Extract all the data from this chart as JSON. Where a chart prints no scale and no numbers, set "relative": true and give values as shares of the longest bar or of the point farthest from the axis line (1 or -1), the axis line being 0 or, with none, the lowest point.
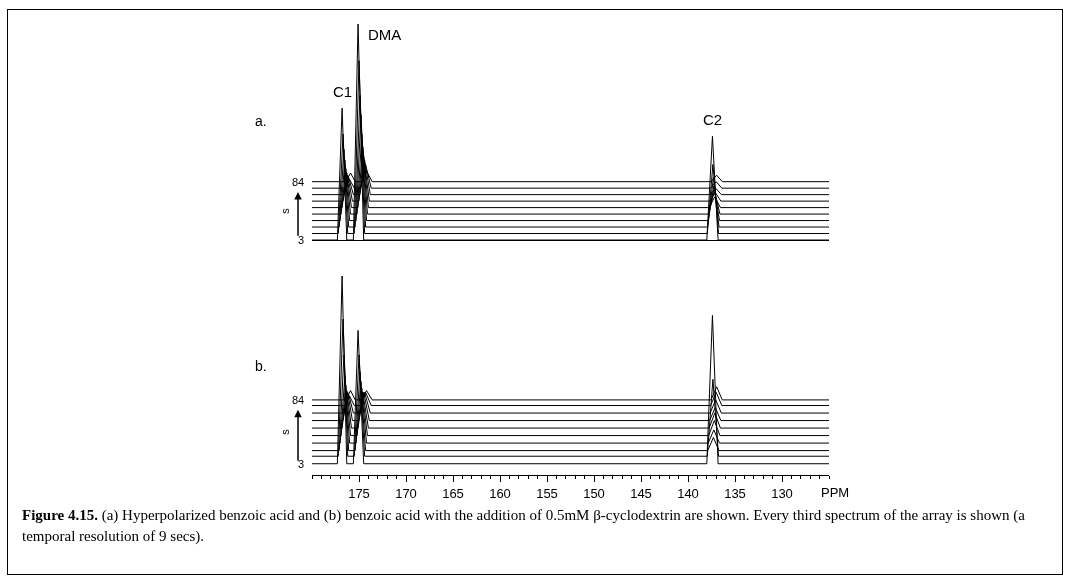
{
  "chart_data": [
    {
      "type": "line",
      "title": "a.",
      "ylabel": "s",
      "relative": true,
      "xlim": [
        180,
        125
      ],
      "xticks": [
        175,
        170,
        165,
        160,
        155,
        150,
        145,
        140,
        135,
        130
      ],
      "tick_labels": false,
      "annotations": [
        {
          "text": "C1",
          "x": 176.8,
          "y": 0.61
        },
        {
          "text": "DMA",
          "x": 175.1,
          "y": 1
        },
        {
          "text": "C2",
          "x": 137.4,
          "y": 0.48
        },
        "3",
        "84"
      ],
      "series": [
        {
          "color": "#000000",
          "x": [
            180,
            177.3,
            176.8,
            176.3,
            175.6,
            175.1,
            174.5,
            138,
            137.4,
            136.8,
            125
          ],
          "values": [
            0,
            0,
            0.61,
            0,
            0,
            1,
            0,
            0,
            0.48,
            0,
            0
          ]
        },
        {
          "color": "#000000",
          "x": [
            180,
            177.2,
            176.7,
            176.2,
            175.5,
            175,
            174.4,
            137.95,
            137.35,
            136.75,
            125
          ],
          "values": [
            0.03,
            0.03,
            0.49,
            0.03,
            0.03,
            0.83,
            0.03,
            0.03,
            0.35,
            0.03,
            0.03
          ]
        },
        {
          "color": "#000000",
          "x": [
            180,
            177.1,
            176.6,
            176.1,
            175.4,
            174.9,
            174.3,
            137.9,
            137.3,
            136.7,
            125
          ],
          "values": [
            0.06,
            0.06,
            0.42,
            0.06,
            0.06,
            0.67,
            0.06,
            0.06,
            0.29,
            0.06,
            0.06
          ]
        },
        {
          "color": "#000000",
          "x": [
            180,
            177,
            176.5,
            176,
            175.3,
            174.8,
            174.2,
            137.85,
            137.25,
            136.65,
            125
          ],
          "values": [
            0.09,
            0.09,
            0.37,
            0.09,
            0.09,
            0.58,
            0.09,
            0.09,
            0.25,
            0.09,
            0.09
          ]
        },
        {
          "color": "#000000",
          "x": [
            180,
            176.9,
            176.4,
            175.9,
            175.2,
            174.7,
            174.1,
            137.8,
            137.2,
            136.6,
            125
          ],
          "values": [
            0.12,
            0.12,
            0.33,
            0.12,
            0.12,
            0.49,
            0.12,
            0.12,
            0.23,
            0.12,
            0.12
          ]
        },
        {
          "color": "#000000",
          "x": [
            180,
            176.8,
            176.3,
            175.8,
            175.1,
            174.6,
            174,
            137.75,
            137.15,
            136.55,
            125
          ],
          "values": [
            0.15,
            0.15,
            0.31,
            0.15,
            0.15,
            0.43,
            0.15,
            0.15,
            0.2,
            0.15,
            0.15
          ]
        },
        {
          "color": "#000000",
          "x": [
            180,
            176.7,
            176.2,
            175.7,
            175,
            174.5,
            173.9,
            137.7,
            137.1,
            136.5,
            125
          ],
          "values": [
            0.18,
            0.18,
            0.3,
            0.18,
            0.18,
            0.39,
            0.18,
            0.18,
            0.22,
            0.18,
            0.18
          ]
        },
        {
          "color": "#000000",
          "x": [
            180,
            176.6,
            176.1,
            175.6,
            174.9,
            174.4,
            173.8,
            137.65,
            137.05,
            136.45,
            125
          ],
          "values": [
            0.21,
            0.21,
            0.29,
            0.21,
            0.21,
            0.37,
            0.21,
            0.21,
            0.24,
            0.21,
            0.21
          ]
        },
        {
          "color": "#000000",
          "x": [
            180,
            176.5,
            176,
            175.5,
            174.8,
            174.3,
            173.7,
            137.6,
            137,
            136.4,
            125
          ],
          "values": [
            0.24,
            0.24,
            0.28,
            0.24,
            0.24,
            0.35,
            0.24,
            0.24,
            0.27,
            0.24,
            0.24
          ]
        },
        {
          "color": "#000000",
          "x": [
            180,
            176.4,
            175.9,
            175.4,
            174.7,
            174.2,
            173.6,
            137.55,
            136.95,
            136.35,
            125
          ],
          "values": [
            0.27,
            0.27,
            0.31,
            0.27,
            0.27,
            0.32,
            0.27,
            0.27,
            0.3,
            0.27,
            0.27
          ]
        }
      ]
    },
    {
      "type": "line",
      "title": "b.",
      "ylabel": "s",
      "xlabel": "PPM",
      "relative": true,
      "xlim": [
        180,
        125
      ],
      "xticks": [
        175,
        170,
        165,
        160,
        155,
        150,
        145,
        140,
        135,
        130
      ],
      "tick_labels": "x",
      "annotations": [
        "3",
        "84",
        "Figure 4.15. (a) Hyperpolarized benzoic acid and (b) benzoic acid with the addition of 0.5mM β-cyclodextrin are shown.  Every third spectrum of the array is shown (a temporal resolution of 9 secs)."
      ],
      "series": [
        {
          "color": "#000000",
          "x": [
            180,
            177.3,
            176.8,
            176.3,
            175.6,
            175.1,
            174.5,
            138,
            137.4,
            136.8,
            125
          ],
          "values": [
            0,
            0,
            1,
            0,
            0,
            0.71,
            0,
            0,
            0.79,
            0,
            0
          ]
        },
        {
          "color": "#000000",
          "x": [
            180,
            177.2,
            176.7,
            176.2,
            175.5,
            175,
            174.4,
            137.95,
            137.35,
            136.75,
            125
          ],
          "values": [
            0.04,
            0.04,
            0.77,
            0.04,
            0.04,
            0.58,
            0.04,
            0.04,
            0.45,
            0.04,
            0.04
          ]
        },
        {
          "color": "#000000",
          "x": [
            180,
            177.1,
            176.6,
            176.1,
            175.4,
            174.9,
            174.3,
            137.9,
            137.3,
            136.7,
            125
          ],
          "values": [
            0.07,
            0.07,
            0.58,
            0.07,
            0.07,
            0.49,
            0.07,
            0.07,
            0.14,
            0.07,
            0.07
          ]
        },
        {
          "color": "#000000",
          "x": [
            180,
            177,
            176.5,
            176,
            175.3,
            174.8,
            174.2,
            137.85,
            137.25,
            136.65,
            125
          ],
          "values": [
            0.11,
            0.11,
            0.47,
            0.11,
            0.11,
            0.44,
            0.11,
            0.11,
            0.18,
            0.11,
            0.11
          ]
        },
        {
          "color": "#000000",
          "x": [
            180,
            176.9,
            176.4,
            175.9,
            175.2,
            174.7,
            174.1,
            137.8,
            137.2,
            136.6,
            125
          ],
          "values": [
            0.15,
            0.15,
            0.42,
            0.15,
            0.15,
            0.4,
            0.15,
            0.15,
            0.23,
            0.15,
            0.15
          ]
        },
        {
          "color": "#000000",
          "x": [
            180,
            176.8,
            176.3,
            175.8,
            175.1,
            174.6,
            174,
            137.75,
            137.15,
            136.55,
            125
          ],
          "values": [
            0.19,
            0.19,
            0.39,
            0.19,
            0.19,
            0.38,
            0.19,
            0.19,
            0.27,
            0.19,
            0.19
          ]
        },
        {
          "color": "#000000",
          "x": [
            180,
            176.7,
            176.2,
            175.7,
            175,
            174.5,
            173.9,
            137.7,
            137.1,
            136.5,
            125
          ],
          "values": [
            0.23,
            0.23,
            0.38,
            0.23,
            0.23,
            0.38,
            0.23,
            0.23,
            0.3,
            0.23,
            0.23
          ]
        },
        {
          "color": "#000000",
          "x": [
            180,
            176.6,
            176.1,
            175.6,
            174.9,
            174.4,
            173.8,
            137.65,
            137.05,
            136.45,
            125
          ],
          "values": [
            0.27,
            0.27,
            0.37,
            0.27,
            0.27,
            0.38,
            0.27,
            0.27,
            0.34,
            0.27,
            0.27
          ]
        },
        {
          "color": "#000000",
          "x": [
            180,
            176.5,
            176,
            175.5,
            174.8,
            174.3,
            173.7,
            137.6,
            137,
            136.4,
            125
          ],
          "values": [
            0.31,
            0.31,
            0.36,
            0.31,
            0.31,
            0.38,
            0.31,
            0.31,
            0.38,
            0.31,
            0.31
          ]
        },
        {
          "color": "#000000",
          "x": [
            180,
            176.4,
            175.9,
            175.4,
            174.7,
            174.2,
            173.6,
            137.55,
            136.95,
            136.35,
            125
          ],
          "values": [
            0.34,
            0.34,
            0.39,
            0.34,
            0.34,
            0.39,
            0.34,
            0.34,
            0.41,
            0.34,
            0.34
          ]
        }
      ]
    }
  ]
}
